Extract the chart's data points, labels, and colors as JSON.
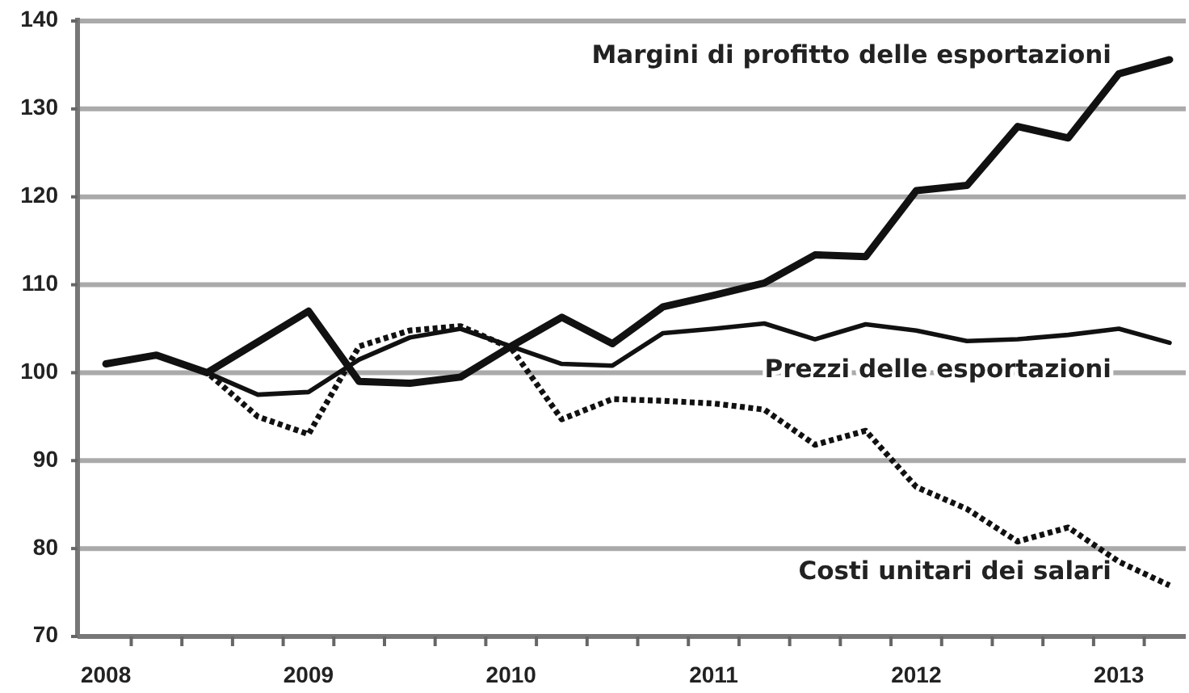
{
  "chart_data": {
    "type": "line",
    "x": [
      2008,
      2008.25,
      2008.5,
      2008.75,
      2009,
      2009.25,
      2009.5,
      2009.75,
      2010,
      2010.25,
      2010.5,
      2010.75,
      2011,
      2011.25,
      2011.5,
      2011.75,
      2012,
      2012.25,
      2012.5,
      2012.75,
      2013,
      2013.25
    ],
    "series": [
      {
        "name": "Margini di profitto delle esportazioni",
        "color": "#111111",
        "line_style": "solid",
        "values": [
          101,
          102,
          100,
          103.5,
          107,
          99,
          98.8,
          99.5,
          103,
          106.3,
          103.3,
          107.5,
          108.8,
          110.2,
          113.4,
          113.2,
          120.7,
          121.3,
          128,
          126.7,
          134,
          135.6
        ]
      },
      {
        "name": "Prezzi delle esportazioni",
        "color": "#111111",
        "line_style": "solid",
        "values": [
          101,
          102,
          100,
          97.5,
          97.8,
          101.5,
          104,
          105,
          103,
          101,
          100.8,
          104.5,
          105,
          105.6,
          103.8,
          105.5,
          104.8,
          103.6,
          103.8,
          104.3,
          105,
          103.4
        ]
      },
      {
        "name": "Costi unitari dei salari",
        "color": "#111111",
        "line_style": "dotted",
        "values": [
          101,
          102,
          100,
          95,
          93,
          103,
          104.8,
          105.3,
          102.8,
          94.7,
          97,
          96.8,
          96.5,
          95.8,
          91.8,
          93.4,
          87,
          84.5,
          80.8,
          82.4,
          78.5,
          75.8
        ]
      }
    ],
    "xlim": [
      2007.86,
      2013.33
    ],
    "ylim": [
      70,
      140
    ],
    "xticks": [
      2008,
      {
        "value": 2008.125,
        "label": null
      },
      {
        "value": 2008.375,
        "label": null
      },
      {
        "value": 2008.625,
        "label": null
      },
      {
        "value": 2008.875,
        "label": null
      },
      2009,
      {
        "value": 2009.125,
        "label": null
      },
      {
        "value": 2009.375,
        "label": null
      },
      {
        "value": 2009.625,
        "label": null
      },
      {
        "value": 2009.875,
        "label": null
      },
      2010,
      {
        "value": 2010.125,
        "label": null
      },
      {
        "value": 2010.375,
        "label": null
      },
      {
        "value": 2010.625,
        "label": null
      },
      {
        "value": 2010.875,
        "label": null
      },
      2011,
      {
        "value": 2011.125,
        "label": null
      },
      {
        "value": 2011.375,
        "label": null
      },
      {
        "value": 2011.625,
        "label": null
      },
      {
        "value": 2011.875,
        "label": null
      },
      2012,
      {
        "value": 2012.125,
        "label": null
      },
      {
        "value": 2012.375,
        "label": null
      },
      {
        "value": 2012.625,
        "label": null
      },
      {
        "value": 2012.875,
        "label": null
      },
      2013,
      {
        "value": 2013.125,
        "label": null
      }
    ],
    "yticks": [
      70,
      80,
      90,
      100,
      110,
      120,
      130,
      140
    ],
    "grid": "y"
  }
}
